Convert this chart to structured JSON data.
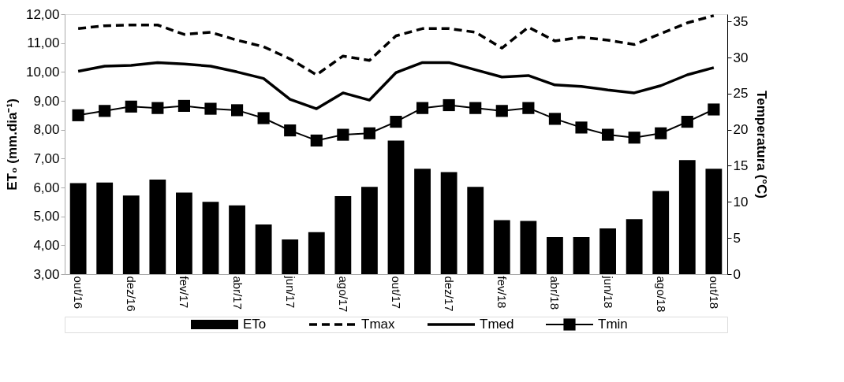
{
  "chart_data": {
    "type": "bar",
    "categories": [
      "out/16",
      null,
      "dez/16",
      null,
      "fev/17",
      null,
      "abr/17",
      null,
      "jun/17",
      null,
      "ago/17",
      null,
      "out/17",
      null,
      "dez/17",
      null,
      "fev/18",
      null,
      "abr/18",
      null,
      "jun/18",
      null,
      "ago/18",
      null,
      "out/18"
    ],
    "ylabel": "ET₀ (mm.dia⁻¹)",
    "y2label": "Temperatura (°C)",
    "ylim": [
      3,
      12
    ],
    "yticks": [
      {
        "value": 3,
        "label": "3,00"
      },
      {
        "value": 4,
        "label": "4,00"
      },
      {
        "value": 5,
        "label": "5,00"
      },
      {
        "value": 6,
        "label": "6,00"
      },
      {
        "value": 7,
        "label": "7,00"
      },
      {
        "value": 8,
        "label": "8,00"
      },
      {
        "value": 9,
        "label": "9,00"
      },
      {
        "value": 10,
        "label": "10,00"
      },
      {
        "value": 11,
        "label": "11,00"
      },
      {
        "value": 12,
        "label": "12,00"
      }
    ],
    "y2lim": [
      0,
      36
    ],
    "y2ticks": [
      0,
      5,
      10,
      15,
      20,
      25,
      30,
      35
    ],
    "grid": false,
    "legend": "bottom",
    "series": [
      {
        "name": "ETo",
        "color": "#000000",
        "values": [
          6.15,
          6.17,
          5.72,
          6.27,
          5.82,
          5.5,
          5.38,
          4.72,
          4.2,
          4.45,
          5.7,
          6.02,
          7.62,
          6.65,
          6.53,
          6.02,
          4.87,
          4.84,
          4.28,
          4.28,
          4.58,
          4.9,
          5.88,
          6.95,
          6.65
        ]
      },
      {
        "name": "Tmax",
        "type": "line",
        "axis": "y2",
        "color": "#000000",
        "line_style": "dashed",
        "marker": "none",
        "values": [
          34.0,
          34.4,
          34.5,
          34.5,
          33.2,
          33.5,
          32.4,
          31.5,
          29.8,
          27.6,
          30.2,
          29.6,
          33.0,
          34.0,
          34.0,
          33.5,
          31.3,
          34.2,
          32.3,
          32.8,
          32.4,
          31.8,
          33.3,
          34.8,
          35.8
        ]
      },
      {
        "name": "Tmed",
        "type": "line",
        "axis": "y2",
        "color": "#000000",
        "line_style": "solid",
        "marker": "none",
        "values": [
          28.1,
          28.8,
          28.9,
          29.3,
          29.1,
          28.8,
          28.0,
          27.1,
          24.2,
          22.9,
          25.1,
          24.1,
          27.9,
          29.3,
          29.3,
          28.3,
          27.3,
          27.5,
          26.2,
          26.0,
          25.5,
          25.1,
          26.1,
          27.6,
          28.6
        ]
      },
      {
        "name": "Tmin",
        "type": "line",
        "axis": "y2",
        "color": "#000000",
        "line_style": "solid",
        "marker": "square",
        "values": [
          22.0,
          22.6,
          23.2,
          23.0,
          23.3,
          22.9,
          22.7,
          21.6,
          19.9,
          18.5,
          19.3,
          19.5,
          21.1,
          23.0,
          23.4,
          23.0,
          22.6,
          23.0,
          21.5,
          20.3,
          19.3,
          18.9,
          19.5,
          21.1,
          22.8
        ]
      }
    ]
  }
}
